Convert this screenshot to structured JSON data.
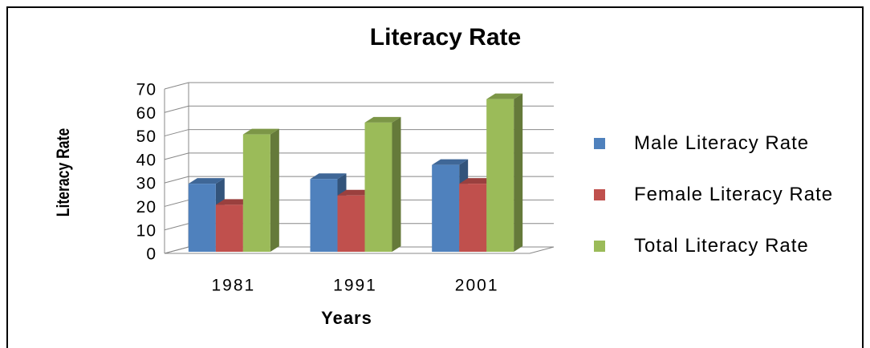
{
  "chart_data": {
    "type": "bar3d",
    "title": "Literacy Rate",
    "x_label": "Years",
    "y_label": "Literacy Rate",
    "categories": [
      "1981",
      "1991",
      "2001"
    ],
    "series": [
      {
        "name": "Male Literacy Rate",
        "color": "#4f81bd",
        "values": [
          29,
          31,
          37
        ]
      },
      {
        "name": "Female Literacy Rate",
        "color": "#c0504d",
        "values": [
          20,
          24,
          29
        ]
      },
      {
        "name": "Total Literacy Rate",
        "color": "#9bbb59",
        "values": [
          50,
          55,
          65
        ]
      }
    ],
    "ylim": [
      0,
      70
    ],
    "yticks": [
      0,
      10,
      20,
      30,
      40,
      50,
      60,
      70
    ],
    "grid": true,
    "legend": "right"
  }
}
